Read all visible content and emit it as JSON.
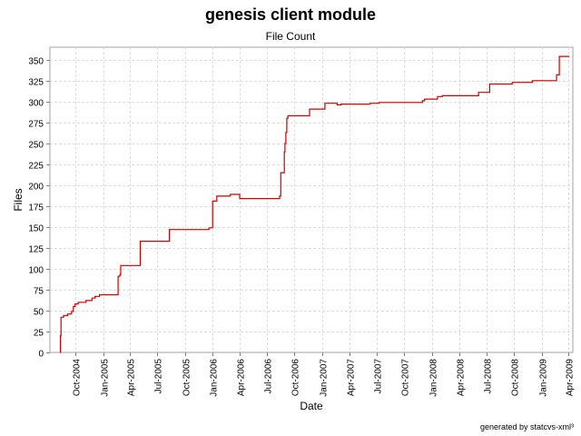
{
  "chart_data": {
    "type": "line",
    "title": "genesis client module",
    "subtitle": "File Count",
    "xlabel": "Date",
    "ylabel": "Files",
    "ylim": [
      0,
      365
    ],
    "yticks": [
      0,
      25,
      50,
      75,
      100,
      125,
      150,
      175,
      200,
      225,
      250,
      275,
      300,
      325,
      350
    ],
    "xlim": [
      "2004-07-08",
      "2009-04-15"
    ],
    "xticks": [
      {
        "date": "2004-10-01",
        "label": "Oct-2004"
      },
      {
        "date": "2005-01-01",
        "label": "Jan-2005"
      },
      {
        "date": "2005-04-01",
        "label": "Apr-2005"
      },
      {
        "date": "2005-07-01",
        "label": "Jul-2005"
      },
      {
        "date": "2005-10-01",
        "label": "Oct-2005"
      },
      {
        "date": "2006-01-01",
        "label": "Jan-2006"
      },
      {
        "date": "2006-04-01",
        "label": "Apr-2006"
      },
      {
        "date": "2006-07-01",
        "label": "Jul-2006"
      },
      {
        "date": "2006-10-01",
        "label": "Oct-2006"
      },
      {
        "date": "2007-01-01",
        "label": "Jan-2007"
      },
      {
        "date": "2007-04-01",
        "label": "Apr-2007"
      },
      {
        "date": "2007-07-01",
        "label": "Jul-2007"
      },
      {
        "date": "2007-10-01",
        "label": "Oct-2007"
      },
      {
        "date": "2008-01-01",
        "label": "Jan-2008"
      },
      {
        "date": "2008-04-01",
        "label": "Apr-2008"
      },
      {
        "date": "2008-07-01",
        "label": "Jul-2008"
      },
      {
        "date": "2008-10-01",
        "label": "Oct-2008"
      },
      {
        "date": "2009-01-01",
        "label": "Jan-2009"
      },
      {
        "date": "2009-04-01",
        "label": "Apr-2009"
      }
    ],
    "grid": true,
    "line_color": "#cc0000",
    "series": [
      {
        "name": "Files",
        "step": true,
        "points": [
          [
            "2004-08-10",
            0
          ],
          [
            "2004-08-12",
            20
          ],
          [
            "2004-08-14",
            42
          ],
          [
            "2004-08-22",
            44
          ],
          [
            "2004-09-05",
            46
          ],
          [
            "2004-09-18",
            49
          ],
          [
            "2004-09-24",
            55
          ],
          [
            "2004-09-30",
            58
          ],
          [
            "2004-10-10",
            60
          ],
          [
            "2004-11-05",
            62
          ],
          [
            "2004-11-25",
            65
          ],
          [
            "2004-12-05",
            67
          ],
          [
            "2004-12-20",
            69
          ],
          [
            "2005-02-20",
            91
          ],
          [
            "2005-02-26",
            93
          ],
          [
            "2005-03-01",
            104
          ],
          [
            "2005-05-05",
            133
          ],
          [
            "2005-08-10",
            147
          ],
          [
            "2005-12-20",
            149
          ],
          [
            "2006-01-01",
            181
          ],
          [
            "2006-01-15",
            187
          ],
          [
            "2006-03-01",
            189
          ],
          [
            "2006-04-01",
            184
          ],
          [
            "2006-08-12",
            187
          ],
          [
            "2006-08-16",
            215
          ],
          [
            "2006-08-28",
            240
          ],
          [
            "2006-08-30",
            250
          ],
          [
            "2006-09-02",
            263
          ],
          [
            "2006-09-05",
            280
          ],
          [
            "2006-09-09",
            283
          ],
          [
            "2006-11-20",
            291
          ],
          [
            "2007-01-10",
            298
          ],
          [
            "2007-02-20",
            296
          ],
          [
            "2007-03-05",
            297
          ],
          [
            "2007-06-10",
            298
          ],
          [
            "2007-07-10",
            299
          ],
          [
            "2007-12-01",
            301
          ],
          [
            "2007-12-08",
            303
          ],
          [
            "2008-01-20",
            306
          ],
          [
            "2008-02-05",
            307
          ],
          [
            "2008-06-05",
            311
          ],
          [
            "2008-07-12",
            321
          ],
          [
            "2008-09-25",
            323
          ],
          [
            "2008-12-01",
            325
          ],
          [
            "2009-02-20",
            332
          ],
          [
            "2009-03-01",
            354
          ],
          [
            "2009-04-03",
            354
          ]
        ]
      }
    ]
  },
  "footer": "generated by statcvs-xml³"
}
